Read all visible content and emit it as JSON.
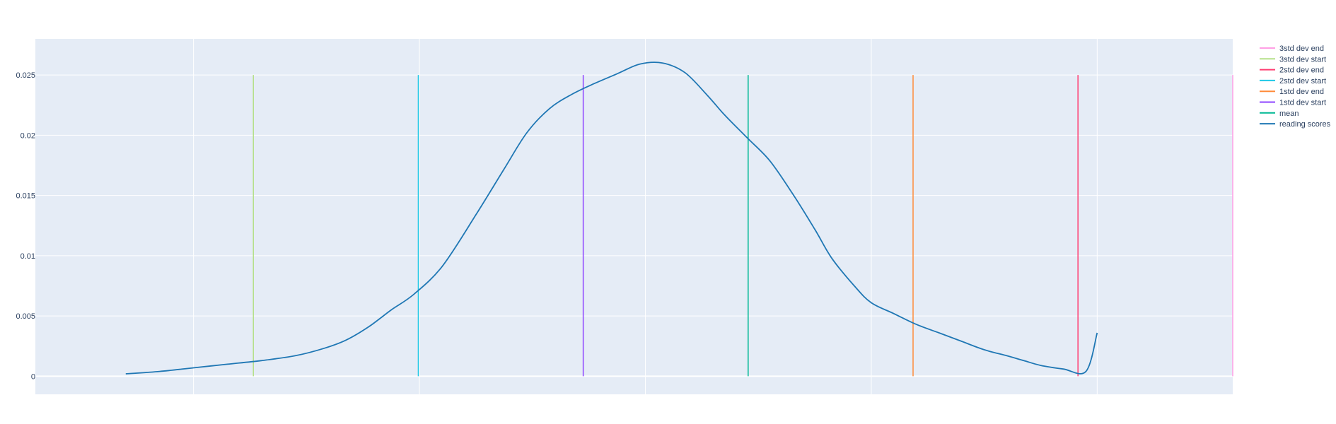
{
  "chart_data": {
    "type": "line",
    "title": "",
    "xlabel": "",
    "ylabel": "",
    "xlim": [
      6,
      112
    ],
    "ylim": [
      -0.0015,
      0.028
    ],
    "grid": true,
    "legend_placement": "top-right",
    "x_gridlines": [
      20,
      40,
      60,
      80,
      100
    ],
    "y_ticks": [
      {
        "value": 0,
        "label": "0"
      },
      {
        "value": 0.005,
        "label": "0.005"
      },
      {
        "value": 0.01,
        "label": "0.01"
      },
      {
        "value": 0.015,
        "label": "0.015"
      },
      {
        "value": 0.02,
        "label": "0.02"
      },
      {
        "value": 0.025,
        "label": "0.025"
      }
    ],
    "series": [
      {
        "name": "reading scores",
        "kind": "density",
        "color": "#1f77b4",
        "x": [
          14,
          17,
          20,
          23,
          26,
          29,
          31.5,
          33.5,
          35.5,
          37.5,
          39.5,
          42,
          45,
          47.5,
          49.5,
          51.5,
          53.5,
          55.5,
          57.5,
          59.5,
          61.5,
          63.5,
          65.5,
          67,
          69,
          71,
          73,
          75,
          76.5,
          78.5,
          80,
          82,
          84,
          86,
          88,
          90,
          92,
          93.5,
          95,
          97,
          99,
          100
        ],
        "y": [
          0.0002,
          0.0004,
          0.0007,
          0.001,
          0.0013,
          0.0017,
          0.0023,
          0.003,
          0.0041,
          0.0055,
          0.0068,
          0.0091,
          0.0134,
          0.0172,
          0.0202,
          0.0222,
          0.0234,
          0.0243,
          0.0251,
          0.0259,
          0.026,
          0.0252,
          0.0233,
          0.0217,
          0.0198,
          0.0179,
          0.0152,
          0.0122,
          0.0098,
          0.0075,
          0.0061,
          0.0052,
          0.0043,
          0.0036,
          0.0029,
          0.0022,
          0.0017,
          0.0013,
          0.0009,
          0.0006,
          0.0004,
          0.0036
        ]
      },
      {
        "name": "mean",
        "kind": "vline",
        "color": "#00b894",
        "x": 69.1,
        "y": [
          0,
          0.025
        ]
      },
      {
        "name": "1std dev start",
        "kind": "vline",
        "color": "#8e44ff",
        "x": 54.5,
        "y": [
          0,
          0.025
        ]
      },
      {
        "name": "1std dev end",
        "kind": "vline",
        "color": "#ff8c3a",
        "x": 83.7,
        "y": [
          0,
          0.025
        ]
      },
      {
        "name": "2std dev start",
        "kind": "vline",
        "color": "#1fc8e6",
        "x": 39.9,
        "y": [
          0,
          0.025
        ]
      },
      {
        "name": "2std dev end",
        "kind": "vline",
        "color": "#ff3d71",
        "x": 98.3,
        "y": [
          0,
          0.025
        ]
      },
      {
        "name": "3std dev start",
        "kind": "vline",
        "color": "#b5e08a",
        "x": 25.3,
        "y": [
          0,
          0.025
        ]
      },
      {
        "name": "3std dev end",
        "kind": "vline",
        "color": "#ff9fe5",
        "x": 112.9,
        "y": [
          0,
          0.025
        ]
      }
    ],
    "legend_order": [
      "3std dev end",
      "3std dev start",
      "2std dev end",
      "2std dev start",
      "1std dev end",
      "1std dev start",
      "mean",
      "reading scores"
    ]
  },
  "colors": {
    "plot_background": "#e5ecf6",
    "grid": "#ffffff",
    "text": "#2a3f5f"
  }
}
